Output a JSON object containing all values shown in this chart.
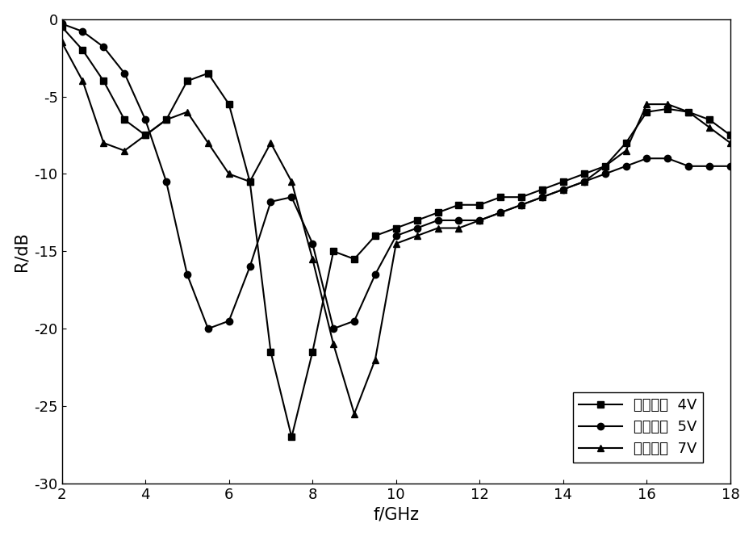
{
  "xlabel": "f/GHz",
  "ylabel": "R/dB",
  "xlim": [
    2,
    18
  ],
  "ylim": [
    -30,
    0
  ],
  "xticks": [
    2,
    4,
    6,
    8,
    10,
    12,
    14,
    16,
    18
  ],
  "yticks": [
    0,
    -5,
    -10,
    -15,
    -20,
    -25,
    -30
  ],
  "legend_labels": [
    "偏置电压  4V",
    "偏置电压  5V",
    "偏置电压  7V"
  ],
  "series_4V_x": [
    2.0,
    2.5,
    3.0,
    3.5,
    4.0,
    4.5,
    5.0,
    5.5,
    6.0,
    6.5,
    7.0,
    7.5,
    8.0,
    8.5,
    9.0,
    9.5,
    10.0,
    10.5,
    11.0,
    11.5,
    12.0,
    12.5,
    13.0,
    13.5,
    14.0,
    14.5,
    15.0,
    15.5,
    16.0,
    16.5,
    17.0,
    17.5,
    18.0
  ],
  "series_4V_y": [
    -0.5,
    -2.0,
    -4.0,
    -6.5,
    -7.5,
    -6.5,
    -4.0,
    -3.5,
    -5.5,
    -10.5,
    -21.5,
    -27.0,
    -21.5,
    -15.0,
    -15.5,
    -14.0,
    -13.5,
    -13.0,
    -12.5,
    -12.0,
    -12.0,
    -11.5,
    -11.5,
    -11.0,
    -10.5,
    -10.0,
    -9.5,
    -8.0,
    -6.0,
    -5.8,
    -6.0,
    -6.5,
    -7.5
  ],
  "series_5V_x": [
    2.0,
    2.5,
    3.0,
    3.5,
    4.0,
    4.5,
    5.0,
    5.5,
    6.0,
    6.5,
    7.0,
    7.5,
    8.0,
    8.5,
    9.0,
    9.5,
    10.0,
    10.5,
    11.0,
    11.5,
    12.0,
    12.5,
    13.0,
    13.5,
    14.0,
    14.5,
    15.0,
    15.5,
    16.0,
    16.5,
    17.0,
    17.5,
    18.0
  ],
  "series_5V_y": [
    -0.3,
    -0.8,
    -1.8,
    -3.5,
    -6.5,
    -10.5,
    -16.5,
    -20.0,
    -19.5,
    -16.0,
    -11.8,
    -11.5,
    -14.5,
    -20.0,
    -19.5,
    -16.5,
    -14.0,
    -13.5,
    -13.0,
    -13.0,
    -13.0,
    -12.5,
    -12.0,
    -11.5,
    -11.0,
    -10.5,
    -10.0,
    -9.5,
    -9.0,
    -9.0,
    -9.5,
    -9.5,
    -9.5
  ],
  "series_7V_x": [
    2.0,
    2.5,
    3.0,
    3.5,
    4.0,
    4.5,
    5.0,
    5.5,
    6.0,
    6.5,
    7.0,
    7.5,
    8.0,
    8.5,
    9.0,
    9.5,
    10.0,
    10.5,
    11.0,
    11.5,
    12.0,
    12.5,
    13.0,
    13.5,
    14.0,
    14.5,
    15.0,
    15.5,
    16.0,
    16.5,
    17.0,
    17.5,
    18.0
  ],
  "series_7V_y": [
    -1.5,
    -4.0,
    -8.0,
    -8.5,
    -7.5,
    -6.5,
    -6.0,
    -8.0,
    -10.0,
    -10.5,
    -8.0,
    -10.5,
    -15.5,
    -21.0,
    -25.5,
    -22.0,
    -14.5,
    -14.0,
    -13.5,
    -13.5,
    -13.0,
    -12.5,
    -12.0,
    -11.5,
    -11.0,
    -10.5,
    -9.5,
    -8.5,
    -5.5,
    -5.5,
    -6.0,
    -7.0,
    -8.0
  ],
  "line_color": "black",
  "marker_4V": "s",
  "marker_5V": "o",
  "marker_7V": "^",
  "markersize": 6,
  "linewidth": 1.5,
  "font_size_label": 15,
  "font_size_tick": 13,
  "font_size_legend": 13
}
